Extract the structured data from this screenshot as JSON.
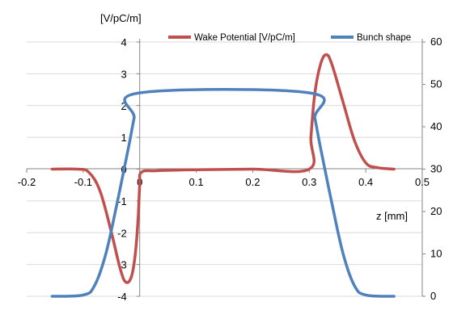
{
  "chart_data": {
    "type": "line",
    "y_unit_label": "[V/pC/m]",
    "x_unit_label": "z [mm]",
    "x_ticks": [
      "-0.2",
      "-0.1",
      "0",
      "0.1",
      "0.2",
      "0.3",
      "0.4",
      "0.5"
    ],
    "y_left_ticks": [
      "4",
      "3",
      "2",
      "1",
      "0",
      "-1",
      "-2",
      "-3",
      "-4"
    ],
    "y_right_ticks": [
      "60",
      "50",
      "40",
      "30",
      "20",
      "10",
      "0"
    ],
    "xlim": [
      -0.2,
      0.5
    ],
    "ylim_left": [
      -4,
      4
    ],
    "ylim_right": [
      0,
      60
    ],
    "grid": "horizontal",
    "legend_position": "top-right",
    "series": [
      {
        "name": "Wake Potential [V/pC/m]",
        "axis": "left",
        "color": "#c0504d",
        "x": [
          -0.155,
          -0.11,
          -0.09,
          -0.07,
          -0.05,
          -0.035,
          -0.025,
          -0.015,
          -0.008,
          -0.003,
          0.0,
          0.003,
          0.03,
          0.1,
          0.2,
          0.3,
          0.303,
          0.31,
          0.32,
          0.33,
          0.34,
          0.36,
          0.38,
          0.4,
          0.42,
          0.45
        ],
        "y": [
          0,
          0,
          -0.1,
          -0.7,
          -2.0,
          -3.1,
          -3.55,
          -3.4,
          -2.7,
          -1.6,
          -0.5,
          -0.1,
          -0.05,
          -0.02,
          0,
          0,
          1.0,
          2.4,
          3.3,
          3.6,
          3.3,
          2.1,
          0.9,
          0.2,
          0.05,
          0
        ]
      },
      {
        "name": "Bunch shape",
        "axis": "right",
        "color": "#4f81bd",
        "x": [
          -0.155,
          -0.1,
          -0.08,
          -0.06,
          -0.04,
          -0.02,
          -0.01,
          0.0,
          0.3,
          0.31,
          0.32,
          0.34,
          0.36,
          0.38,
          0.4,
          0.45
        ],
        "y": [
          0,
          0.3,
          2.5,
          10,
          22,
          35,
          42,
          48,
          48,
          42,
          35,
          22,
          10,
          2.5,
          0.3,
          0
        ]
      }
    ]
  }
}
